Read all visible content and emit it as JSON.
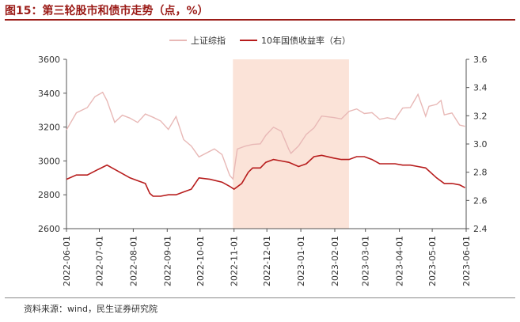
{
  "header": {
    "title": "图15：第三轮股市和债市走势（点，%）"
  },
  "footer": {
    "source": "资料来源：wind，民生证券研究院"
  },
  "chart_data": {
    "type": "line",
    "legend": {
      "placement": "top-center"
    },
    "grid": false,
    "x_ticks": [
      "2022-06-01",
      "2022-07-01",
      "2022-08-01",
      "2022-09-01",
      "2022-10-01",
      "2022-11-01",
      "2022-12-01",
      "2023-01-01",
      "2023-02-01",
      "2023-03-01",
      "2023-04-01",
      "2023-05-01",
      "2023-06-01"
    ],
    "y_left": {
      "lim": [
        2600,
        3600
      ],
      "ticks": [
        "2600",
        "2800",
        "3000",
        "3200",
        "3400",
        "3600"
      ]
    },
    "y_right": {
      "lim": [
        2.4,
        3.6
      ],
      "ticks": [
        "2.4",
        "2.6",
        "2.8",
        "3.0",
        "3.2",
        "3.4",
        "3.6"
      ]
    },
    "shade": {
      "start": "2022-10-31",
      "end": "2023-02-14",
      "color": "#fbe3d8"
    },
    "series": [
      {
        "name": "上证综指",
        "axis": "left",
        "color": "#e8b8b6",
        "points": [
          [
            "2022-06-01",
            3183
          ],
          [
            "2022-06-10",
            3284
          ],
          [
            "2022-06-20",
            3315
          ],
          [
            "2022-06-27",
            3380
          ],
          [
            "2022-07-04",
            3405
          ],
          [
            "2022-07-08",
            3356
          ],
          [
            "2022-07-15",
            3228
          ],
          [
            "2022-07-22",
            3270
          ],
          [
            "2022-07-29",
            3253
          ],
          [
            "2022-08-05",
            3227
          ],
          [
            "2022-08-12",
            3277
          ],
          [
            "2022-08-19",
            3258
          ],
          [
            "2022-08-26",
            3236
          ],
          [
            "2022-09-02",
            3186
          ],
          [
            "2022-09-09",
            3262
          ],
          [
            "2022-09-16",
            3126
          ],
          [
            "2022-09-23",
            3088
          ],
          [
            "2022-09-30",
            3024
          ],
          [
            "2022-10-14",
            3071
          ],
          [
            "2022-10-21",
            3038
          ],
          [
            "2022-10-28",
            2915
          ],
          [
            "2022-10-31",
            2893
          ],
          [
            "2022-11-04",
            3070
          ],
          [
            "2022-11-11",
            3087
          ],
          [
            "2022-11-18",
            3097
          ],
          [
            "2022-11-25",
            3101
          ],
          [
            "2022-11-30",
            3151
          ],
          [
            "2022-12-07",
            3199
          ],
          [
            "2022-12-14",
            3176
          ],
          [
            "2022-12-21",
            3068
          ],
          [
            "2022-12-23",
            3045
          ],
          [
            "2022-12-30",
            3089
          ],
          [
            "2023-01-06",
            3157
          ],
          [
            "2023-01-13",
            3195
          ],
          [
            "2023-01-20",
            3265
          ],
          [
            "2023-01-31",
            3256
          ],
          [
            "2023-02-07",
            3248
          ],
          [
            "2023-02-14",
            3293
          ],
          [
            "2023-02-21",
            3307
          ],
          [
            "2023-02-28",
            3280
          ],
          [
            "2023-03-07",
            3285
          ],
          [
            "2023-03-14",
            3246
          ],
          [
            "2023-03-21",
            3255
          ],
          [
            "2023-03-28",
            3246
          ],
          [
            "2023-04-04",
            3312
          ],
          [
            "2023-04-11",
            3315
          ],
          [
            "2023-04-18",
            3393
          ],
          [
            "2023-04-25",
            3264
          ],
          [
            "2023-04-28",
            3323
          ],
          [
            "2023-05-05",
            3334
          ],
          [
            "2023-05-09",
            3357
          ],
          [
            "2023-05-12",
            3272
          ],
          [
            "2023-05-19",
            3283
          ],
          [
            "2023-05-26",
            3212
          ],
          [
            "2023-05-31",
            3204
          ]
        ]
      },
      {
        "name": "10年国债收益率（右）",
        "axis": "right",
        "color": "#b71c1c",
        "points": [
          [
            "2022-06-01",
            2.75
          ],
          [
            "2022-06-10",
            2.78
          ],
          [
            "2022-06-20",
            2.78
          ],
          [
            "2022-06-30",
            2.82
          ],
          [
            "2022-07-08",
            2.85
          ],
          [
            "2022-07-15",
            2.82
          ],
          [
            "2022-07-22",
            2.79
          ],
          [
            "2022-07-29",
            2.76
          ],
          [
            "2022-08-05",
            2.74
          ],
          [
            "2022-08-12",
            2.72
          ],
          [
            "2022-08-16",
            2.65
          ],
          [
            "2022-08-19",
            2.63
          ],
          [
            "2022-08-26",
            2.63
          ],
          [
            "2022-09-02",
            2.64
          ],
          [
            "2022-09-09",
            2.64
          ],
          [
            "2022-09-16",
            2.66
          ],
          [
            "2022-09-23",
            2.68
          ],
          [
            "2022-09-30",
            2.76
          ],
          [
            "2022-10-10",
            2.75
          ],
          [
            "2022-10-21",
            2.73
          ],
          [
            "2022-10-28",
            2.7
          ],
          [
            "2022-11-01",
            2.68
          ],
          [
            "2022-11-08",
            2.72
          ],
          [
            "2022-11-14",
            2.8
          ],
          [
            "2022-11-18",
            2.83
          ],
          [
            "2022-11-25",
            2.83
          ],
          [
            "2022-11-30",
            2.87
          ],
          [
            "2022-12-07",
            2.89
          ],
          [
            "2022-12-14",
            2.88
          ],
          [
            "2022-12-21",
            2.87
          ],
          [
            "2022-12-30",
            2.84
          ],
          [
            "2023-01-06",
            2.86
          ],
          [
            "2023-01-13",
            2.91
          ],
          [
            "2023-01-20",
            2.92
          ],
          [
            "2023-01-31",
            2.9
          ],
          [
            "2023-02-07",
            2.89
          ],
          [
            "2023-02-14",
            2.89
          ],
          [
            "2023-02-21",
            2.91
          ],
          [
            "2023-02-28",
            2.91
          ],
          [
            "2023-03-07",
            2.89
          ],
          [
            "2023-03-14",
            2.86
          ],
          [
            "2023-03-21",
            2.86
          ],
          [
            "2023-03-28",
            2.86
          ],
          [
            "2023-04-04",
            2.85
          ],
          [
            "2023-04-11",
            2.85
          ],
          [
            "2023-04-18",
            2.84
          ],
          [
            "2023-04-25",
            2.83
          ],
          [
            "2023-05-05",
            2.76
          ],
          [
            "2023-05-12",
            2.72
          ],
          [
            "2023-05-19",
            2.72
          ],
          [
            "2023-05-26",
            2.71
          ],
          [
            "2023-05-31",
            2.69
          ]
        ]
      }
    ]
  }
}
